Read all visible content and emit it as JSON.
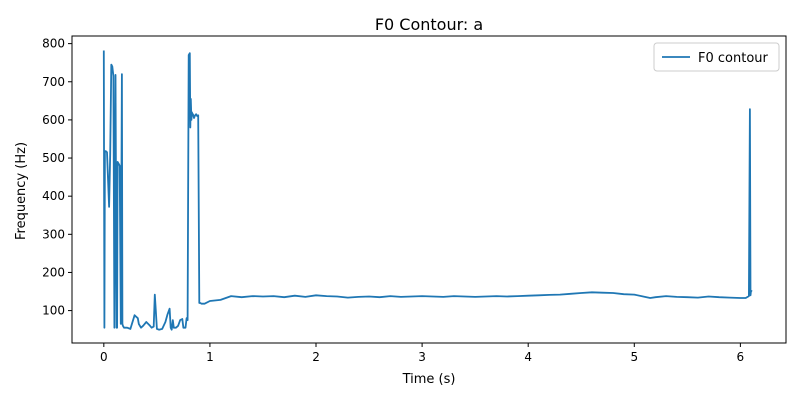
{
  "chart_data": {
    "type": "line",
    "title": "F0 Contour: a",
    "xlabel": "Time (s)",
    "ylabel": "Frequency (Hz)",
    "xlim": [
      -0.3,
      6.43
    ],
    "ylim": [
      15,
      820
    ],
    "xticks": [
      0,
      1,
      2,
      3,
      4,
      5,
      6
    ],
    "yticks": [
      100,
      200,
      300,
      400,
      500,
      600,
      700,
      800
    ],
    "grid": false,
    "legend": {
      "position": "top-right",
      "entries": [
        "F0 contour"
      ]
    },
    "series": [
      {
        "name": "F0 contour",
        "color": "#1f77b4",
        "x": [
          0.0,
          0.005,
          0.01,
          0.02,
          0.03,
          0.05,
          0.06,
          0.07,
          0.08,
          0.09,
          0.1,
          0.11,
          0.12,
          0.125,
          0.13,
          0.14,
          0.15,
          0.16,
          0.17,
          0.175,
          0.18,
          0.19,
          0.2,
          0.22,
          0.25,
          0.29,
          0.3,
          0.32,
          0.33,
          0.35,
          0.37,
          0.4,
          0.43,
          0.45,
          0.47,
          0.48,
          0.49,
          0.5,
          0.52,
          0.55,
          0.58,
          0.6,
          0.62,
          0.63,
          0.64,
          0.65,
          0.66,
          0.68,
          0.7,
          0.72,
          0.74,
          0.75,
          0.77,
          0.78,
          0.79,
          0.8,
          0.81,
          0.815,
          0.82,
          0.825,
          0.83,
          0.835,
          0.84,
          0.845,
          0.85,
          0.86,
          0.87,
          0.88,
          0.89,
          0.9,
          0.91,
          0.92,
          0.95,
          1.0,
          1.1,
          1.2,
          1.3,
          1.4,
          1.5,
          1.6,
          1.7,
          1.8,
          1.9,
          2.0,
          2.1,
          2.2,
          2.3,
          2.4,
          2.5,
          2.6,
          2.7,
          2.8,
          2.9,
          3.0,
          3.1,
          3.2,
          3.3,
          3.4,
          3.5,
          3.6,
          3.7,
          3.8,
          3.9,
          4.0,
          4.1,
          4.2,
          4.3,
          4.4,
          4.5,
          4.6,
          4.7,
          4.8,
          4.9,
          5.0,
          5.1,
          5.15,
          5.2,
          5.3,
          5.4,
          5.5,
          5.6,
          5.7,
          5.8,
          5.9,
          6.0,
          6.05,
          6.08,
          6.09,
          6.095,
          6.1,
          6.11
        ],
        "y": [
          782,
          55,
          518,
          518,
          515,
          372,
          510,
          745,
          740,
          715,
          55,
          718,
          55,
          55,
          490,
          485,
          480,
          65,
          720,
          65,
          60,
          55,
          55,
          55,
          52,
          88,
          85,
          80,
          65,
          55,
          60,
          70,
          62,
          55,
          58,
          142,
          100,
          52,
          50,
          52,
          70,
          90,
          105,
          55,
          50,
          75,
          55,
          55,
          60,
          75,
          78,
          55,
          55,
          80,
          75,
          770,
          775,
          580,
          655,
          600,
          620,
          615,
          615,
          610,
          605,
          612,
          615,
          610,
          612,
          120,
          120,
          118,
          118,
          125,
          128,
          138,
          135,
          138,
          137,
          138,
          135,
          139,
          136,
          140,
          138,
          137,
          134,
          136,
          137,
          135,
          138,
          136,
          137,
          138,
          137,
          136,
          138,
          137,
          136,
          137,
          138,
          137,
          138,
          139,
          140,
          141,
          142,
          144,
          146,
          148,
          147,
          146,
          143,
          142,
          136,
          133,
          135,
          138,
          136,
          135,
          134,
          137,
          135,
          134,
          133,
          133,
          138,
          628,
          140,
          152,
          150
        ]
      }
    ]
  }
}
